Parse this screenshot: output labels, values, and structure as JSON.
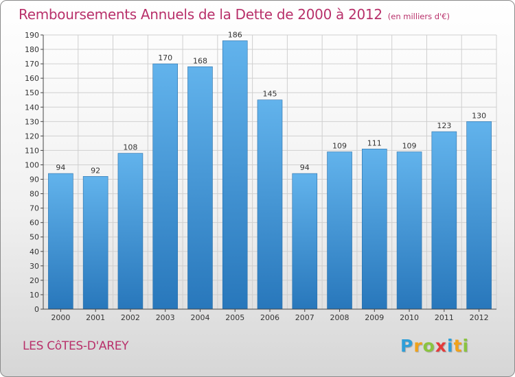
{
  "header": {
    "title": "Remboursements Annuels de la Dette de 2000 à 2012",
    "unit": "(en milliers d'€)"
  },
  "footer": {
    "place": "LES CôTES-D'AREY",
    "brand": "Proxiti",
    "brand_letters": [
      {
        "ch": "P",
        "color": "#2f9fd8"
      },
      {
        "ch": "r",
        "color": "#f0a21b"
      },
      {
        "ch": "o",
        "color": "#8ac43f"
      },
      {
        "ch": "x",
        "color": "#e43a3a"
      },
      {
        "ch": "i",
        "color": "#2f9fd8"
      },
      {
        "ch": "t",
        "color": "#f0a21b"
      },
      {
        "ch": "i",
        "color": "#8ac43f"
      }
    ]
  },
  "colors": {
    "accent": "#b8306a",
    "bar_light": "#5eaee8",
    "bar_dark": "#2a7dc0",
    "grid": "#cfcfcf"
  },
  "chart_data": {
    "type": "bar",
    "title": "Remboursements Annuels de la Dette de 2000 à 2012",
    "categories": [
      "2000",
      "2001",
      "2002",
      "2003",
      "2004",
      "2005",
      "2006",
      "2007",
      "2008",
      "2009",
      "2010",
      "2011",
      "2012"
    ],
    "values": [
      94,
      92,
      108,
      170,
      168,
      186,
      145,
      94,
      109,
      111,
      109,
      123,
      130
    ],
    "ylim": [
      0,
      190
    ],
    "yticks": [
      0,
      10,
      20,
      30,
      40,
      50,
      60,
      70,
      80,
      90,
      100,
      110,
      120,
      130,
      140,
      150,
      160,
      170,
      180,
      190
    ],
    "grid": true,
    "data_labels": true
  }
}
